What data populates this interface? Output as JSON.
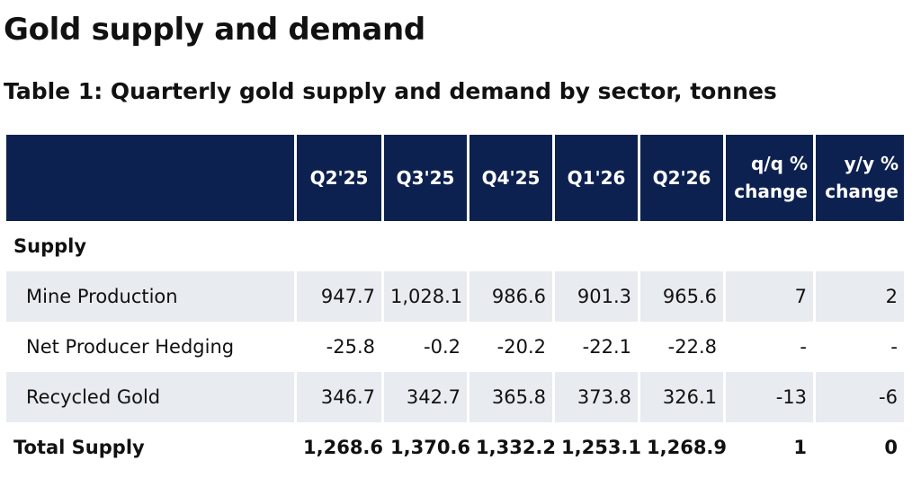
{
  "page_title": "Gold supply and demand",
  "table_title": "Table 1: Quarterly gold supply and demand by sector, tonnes",
  "columns": {
    "q1": "Q2'25",
    "q2": "Q3'25",
    "q3": "Q4'25",
    "q4": "Q1'26",
    "q5": "Q2'26",
    "qq_line1": "q/q %",
    "qq_line2": "change",
    "yy_line1": "y/y %",
    "yy_line2": "change"
  },
  "section_label": "Supply",
  "rows": [
    {
      "label": "Mine Production",
      "values": [
        "947.7",
        "1,028.1",
        "986.6",
        "901.3",
        "965.6",
        "7",
        "2"
      ]
    },
    {
      "label": "Net Producer Hedging",
      "values": [
        "-25.8",
        "-0.2",
        "-20.2",
        "-22.1",
        "-22.8",
        "-",
        "-"
      ]
    },
    {
      "label": "Recycled Gold",
      "values": [
        "346.7",
        "342.7",
        "365.8",
        "373.8",
        "326.1",
        "-13",
        "-6"
      ]
    }
  ],
  "total": {
    "label": "Total Supply",
    "values": [
      "1,268.6",
      "1,370.6",
      "1,332.2",
      "1,253.1",
      "1,268.9",
      "1",
      "0"
    ]
  }
}
